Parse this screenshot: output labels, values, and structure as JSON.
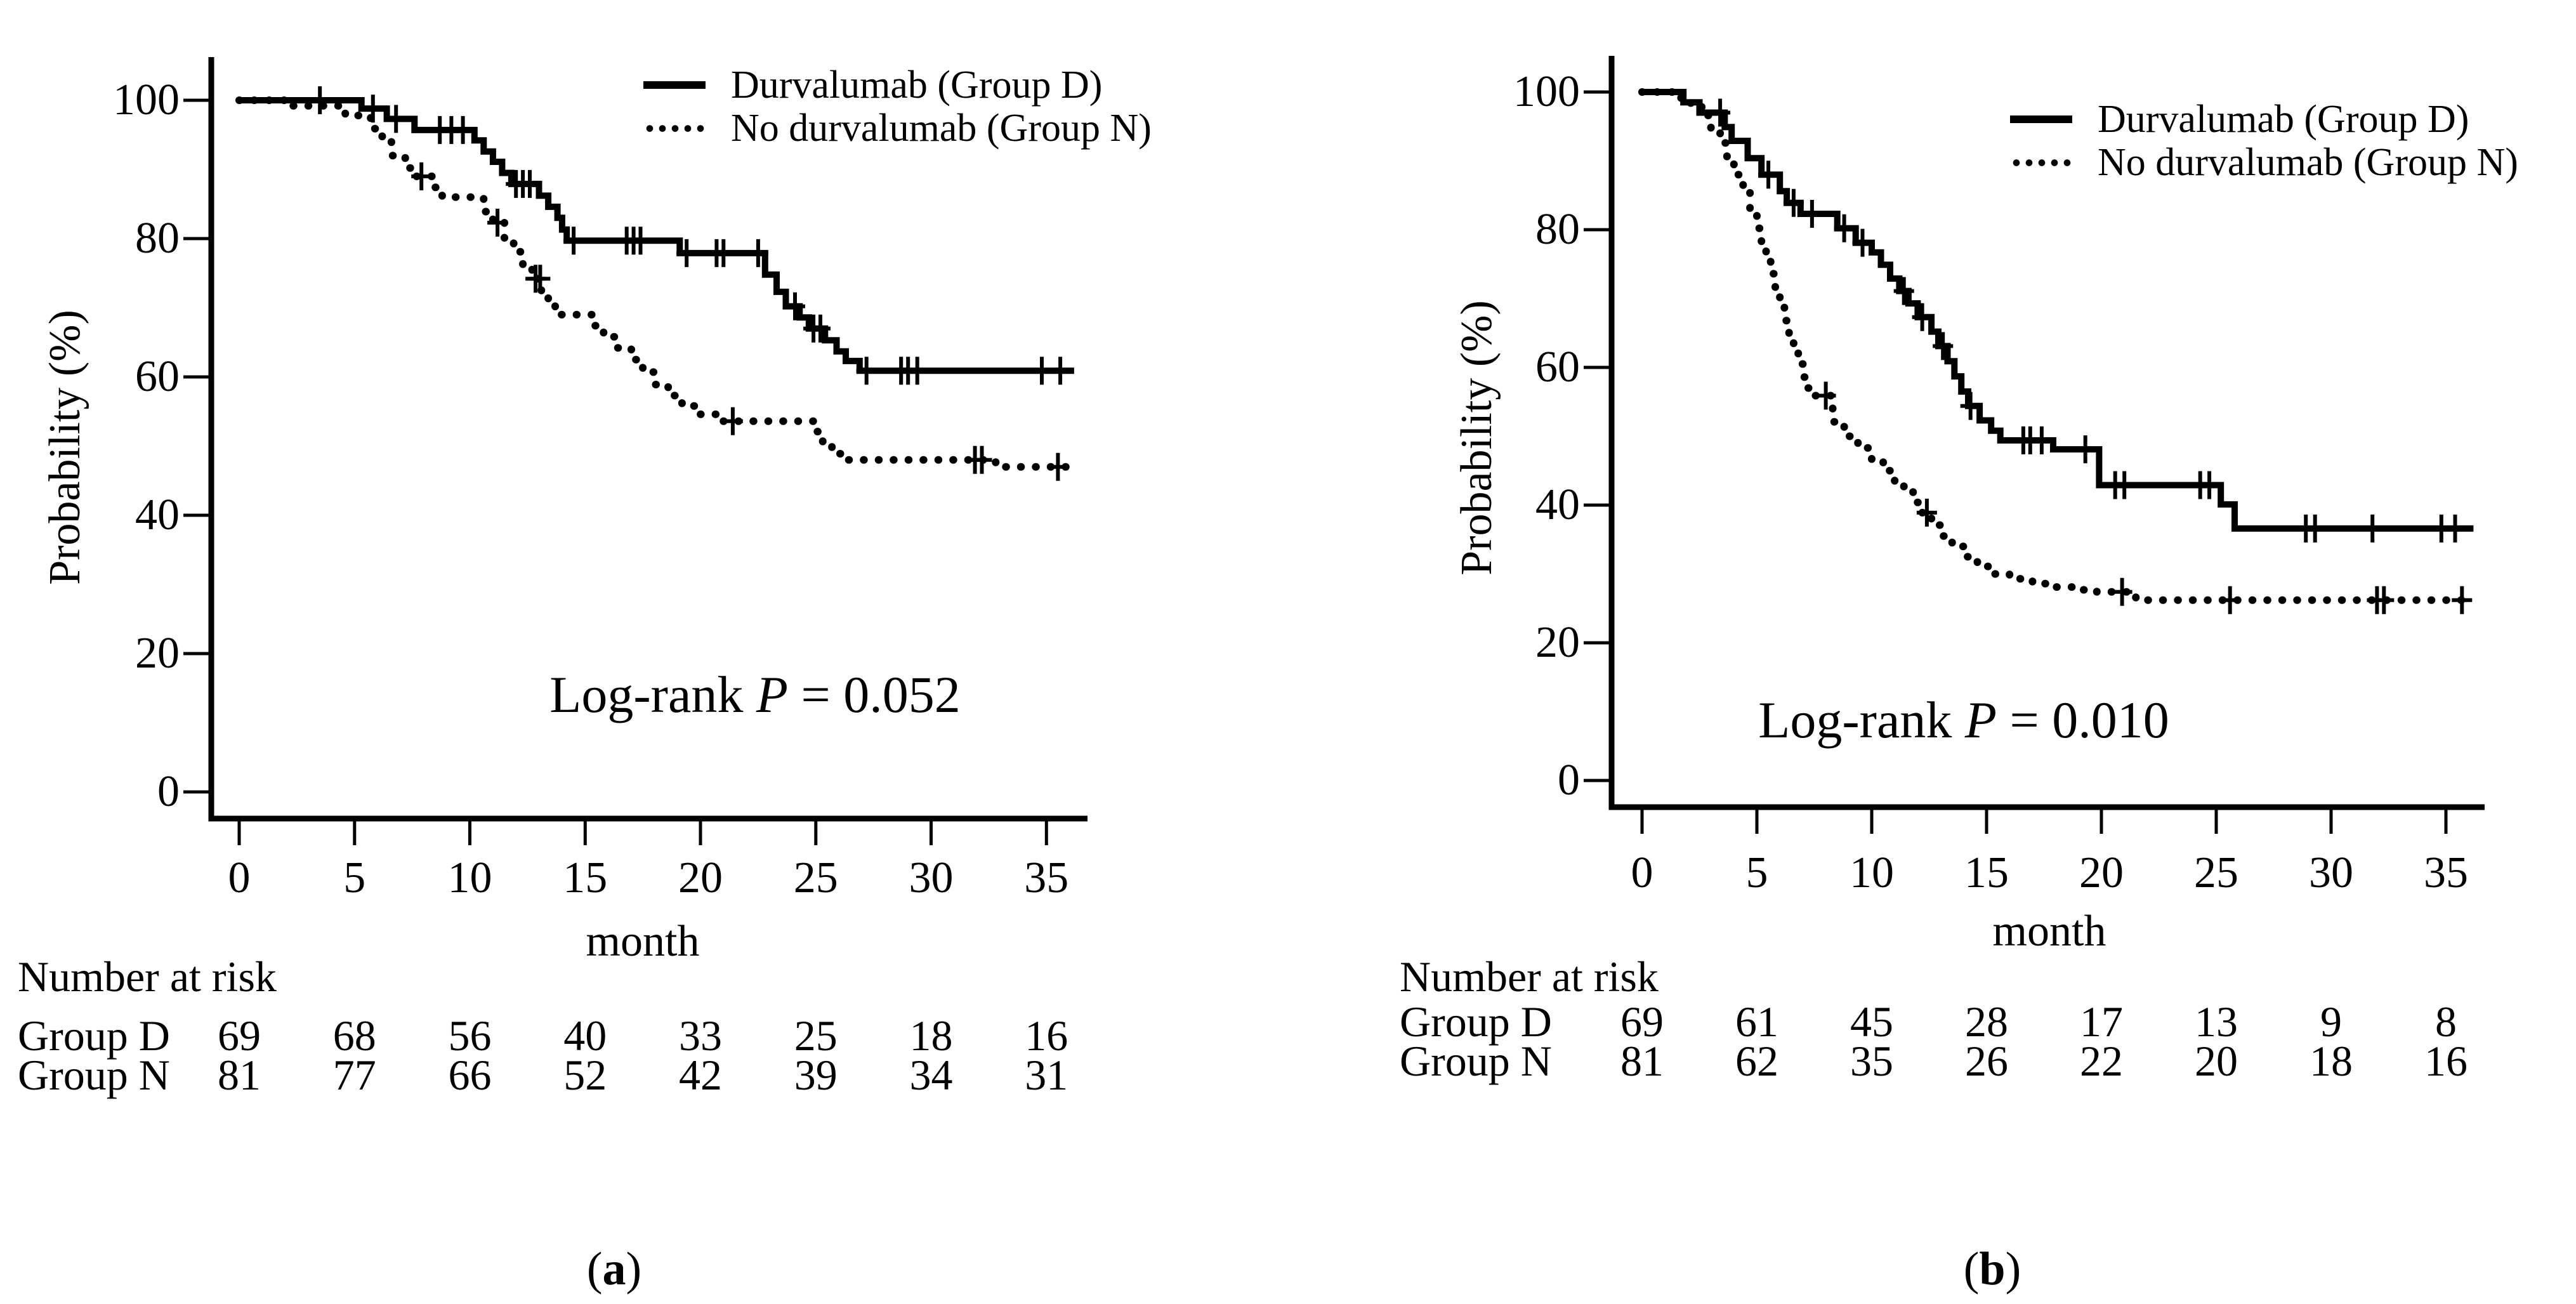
{
  "figure": {
    "background": "#ffffff",
    "ink_color": "#000000"
  },
  "chart_data": [
    {
      "id": "a",
      "type": "line",
      "subtype": "kaplan_meier_step",
      "xlabel": "month",
      "ylabel": "Probability (%)",
      "xlim": [
        0,
        36.5
      ],
      "ylim": [
        0,
        100
      ],
      "xticks": [
        0,
        5,
        10,
        15,
        20,
        25,
        30,
        35
      ],
      "yticks": [
        0,
        20,
        40,
        60,
        80,
        100
      ],
      "grid": false,
      "legend_position": "top-right-inside",
      "annotation": {
        "prefix": "Log-rank",
        "stat": "P",
        "value": "= 0.052"
      },
      "caption": {
        "open": "(",
        "letter": "a",
        "close": ")"
      },
      "series": [
        {
          "name": "Durvalumab (Group D)",
          "group": "Group D",
          "style": "solid",
          "steps_month_percent": [
            [
              0,
              100
            ],
            [
              5.3,
              98.8
            ],
            [
              6.4,
              97.3
            ],
            [
              7.6,
              95.7
            ],
            [
              10.2,
              94.2
            ],
            [
              10.6,
              92.6
            ],
            [
              11.0,
              91.1
            ],
            [
              11.4,
              89.5
            ],
            [
              11.8,
              87.9
            ],
            [
              13.0,
              86.2
            ],
            [
              13.4,
              84.6
            ],
            [
              13.8,
              83.0
            ],
            [
              14.0,
              81.3
            ],
            [
              14.2,
              79.7
            ],
            [
              19.1,
              77.9
            ],
            [
              22.8,
              74.8
            ],
            [
              23.3,
              72.3
            ],
            [
              23.7,
              70.2
            ],
            [
              24.3,
              68.6
            ],
            [
              24.7,
              67.0
            ],
            [
              25.4,
              65.3
            ],
            [
              25.9,
              63.7
            ],
            [
              26.3,
              62.3
            ],
            [
              26.9,
              60.9
            ],
            [
              36.2,
              60.9
            ]
          ],
          "censor_marks_month_percent": [
            [
              3.5,
              100
            ],
            [
              5.8,
              98.8
            ],
            [
              6.8,
              97.3
            ],
            [
              8.7,
              95.7
            ],
            [
              9.2,
              95.7
            ],
            [
              9.7,
              95.7
            ],
            [
              12.0,
              87.9
            ],
            [
              12.3,
              87.9
            ],
            [
              12.6,
              87.9
            ],
            [
              14.5,
              79.7
            ],
            [
              16.8,
              79.7
            ],
            [
              17.1,
              79.7
            ],
            [
              17.4,
              79.7
            ],
            [
              19.4,
              77.9
            ],
            [
              20.7,
              77.9
            ],
            [
              21.0,
              77.9
            ],
            [
              22.5,
              77.9
            ],
            [
              24.1,
              70.2
            ],
            [
              24.9,
              67.0
            ],
            [
              25.2,
              67.0
            ],
            [
              27.2,
              60.9
            ],
            [
              28.7,
              60.9
            ],
            [
              29.0,
              60.9
            ],
            [
              29.4,
              60.9
            ],
            [
              34.8,
              60.9
            ],
            [
              35.6,
              60.9
            ]
          ]
        },
        {
          "name": "No durvalumab (Group N)",
          "group": "Group N",
          "style": "dotted",
          "steps_month_percent": [
            [
              0,
              100
            ],
            [
              2.2,
              99.2
            ],
            [
              4.6,
              97.8
            ],
            [
              5.7,
              95.9
            ],
            [
              6.2,
              94.0
            ],
            [
              6.6,
              92.0
            ],
            [
              7.2,
              90.2
            ],
            [
              7.6,
              89.0
            ],
            [
              8.4,
              87.4
            ],
            [
              8.8,
              86.0
            ],
            [
              10.6,
              83.9
            ],
            [
              11.0,
              82.3
            ],
            [
              11.5,
              80.1
            ],
            [
              11.9,
              78.1
            ],
            [
              12.3,
              76.2
            ],
            [
              12.7,
              74.2
            ],
            [
              13.1,
              72.0
            ],
            [
              13.4,
              70.3
            ],
            [
              13.7,
              69.0
            ],
            [
              15.3,
              67.4
            ],
            [
              15.8,
              65.8
            ],
            [
              16.4,
              64.2
            ],
            [
              17.0,
              62.5
            ],
            [
              17.5,
              60.7
            ],
            [
              18.0,
              58.9
            ],
            [
              18.6,
              57.3
            ],
            [
              19.2,
              55.8
            ],
            [
              19.9,
              54.6
            ],
            [
              20.8,
              53.6
            ],
            [
              24.9,
              52.1
            ],
            [
              25.3,
              50.4
            ],
            [
              25.7,
              48.9
            ],
            [
              26.1,
              48.0
            ],
            [
              32.8,
              47.0
            ],
            [
              36.2,
              47.0
            ]
          ],
          "censor_marks_month_percent": [
            [
              7.9,
              89.0
            ],
            [
              11.2,
              82.3
            ],
            [
              12.85,
              74.2
            ],
            [
              13.05,
              74.2
            ],
            [
              21.4,
              53.6
            ],
            [
              31.9,
              48.0
            ],
            [
              32.2,
              48.0
            ],
            [
              35.5,
              47.0
            ]
          ]
        }
      ],
      "risk_table": {
        "title": "Number at risk",
        "time_points": [
          0,
          5,
          10,
          15,
          20,
          25,
          30,
          35
        ],
        "rows": [
          {
            "label": "Group D",
            "counts": [
              69,
              68,
              56,
              40,
              33,
              25,
              18,
              16
            ]
          },
          {
            "label": "Group N",
            "counts": [
              81,
              77,
              66,
              52,
              42,
              39,
              34,
              31
            ]
          }
        ]
      }
    },
    {
      "id": "b",
      "type": "line",
      "subtype": "kaplan_meier_step",
      "xlabel": "month",
      "ylabel": "Probability (%)",
      "xlim": [
        0,
        36.5
      ],
      "ylim": [
        0,
        100
      ],
      "xticks": [
        0,
        5,
        10,
        15,
        20,
        25,
        30,
        35
      ],
      "yticks": [
        0,
        20,
        40,
        60,
        80,
        100
      ],
      "grid": false,
      "legend_position": "top-right-inside",
      "annotation": {
        "prefix": "Log-rank",
        "stat": "P",
        "value": "= 0.010"
      },
      "caption": {
        "open": "(",
        "letter": "b",
        "close": ")"
      },
      "series": [
        {
          "name": "Durvalumab (Group D)",
          "group": "Group D",
          "style": "solid",
          "steps_month_percent": [
            [
              0,
              100
            ],
            [
              1.8,
              98.5
            ],
            [
              2.5,
              97.0
            ],
            [
              3.6,
              94.9
            ],
            [
              3.9,
              92.9
            ],
            [
              4.6,
              90.4
            ],
            [
              5.2,
              88.0
            ],
            [
              6.0,
              85.6
            ],
            [
              6.3,
              83.9
            ],
            [
              6.9,
              82.3
            ],
            [
              8.5,
              80.2
            ],
            [
              9.3,
              78.1
            ],
            [
              10.0,
              76.7
            ],
            [
              10.4,
              74.9
            ],
            [
              10.8,
              72.9
            ],
            [
              11.2,
              71.1
            ],
            [
              11.6,
              69.3
            ],
            [
              12.0,
              67.3
            ],
            [
              12.6,
              65.2
            ],
            [
              12.9,
              63.1
            ],
            [
              13.3,
              60.9
            ],
            [
              13.6,
              58.7
            ],
            [
              13.9,
              56.5
            ],
            [
              14.2,
              54.4
            ],
            [
              14.7,
              52.3
            ],
            [
              15.2,
              50.8
            ],
            [
              15.6,
              49.4
            ],
            [
              17.9,
              48.1
            ],
            [
              19.9,
              42.9
            ],
            [
              25.2,
              40.1
            ],
            [
              25.8,
              36.6
            ],
            [
              36.2,
              36.6
            ]
          ],
          "censor_marks_month_percent": [
            [
              3.4,
              97.0
            ],
            [
              5.5,
              88.0
            ],
            [
              6.6,
              83.9
            ],
            [
              7.4,
              82.3
            ],
            [
              8.8,
              80.2
            ],
            [
              9.6,
              78.1
            ],
            [
              11.4,
              71.1
            ],
            [
              12.2,
              67.3
            ],
            [
              13.1,
              63.1
            ],
            [
              14.3,
              54.4
            ],
            [
              16.6,
              49.4
            ],
            [
              16.9,
              49.4
            ],
            [
              17.4,
              49.4
            ],
            [
              19.3,
              48.1
            ],
            [
              20.6,
              42.9
            ],
            [
              21.0,
              42.9
            ],
            [
              24.3,
              42.9
            ],
            [
              24.7,
              42.9
            ],
            [
              28.9,
              36.6
            ],
            [
              29.3,
              36.6
            ],
            [
              31.8,
              36.6
            ],
            [
              34.8,
              36.6
            ],
            [
              35.4,
              36.6
            ]
          ]
        },
        {
          "name": "No durvalumab (Group N)",
          "group": "Group N",
          "style": "dotted",
          "steps_month_percent": [
            [
              0,
              100
            ],
            [
              1.7,
              99.0
            ],
            [
              2.0,
              98.4
            ],
            [
              2.6,
              96.6
            ],
            [
              3.0,
              94.8
            ],
            [
              3.4,
              92.6
            ],
            [
              3.7,
              90.3
            ],
            [
              4.0,
              88.0
            ],
            [
              4.4,
              85.4
            ],
            [
              4.7,
              82.6
            ],
            [
              5.0,
              80.2
            ],
            [
              5.2,
              78.0
            ],
            [
              5.4,
              76.0
            ],
            [
              5.6,
              73.6
            ],
            [
              5.8,
              71.3
            ],
            [
              6.0,
              69.1
            ],
            [
              6.2,
              66.8
            ],
            [
              6.4,
              64.6
            ],
            [
              6.6,
              62.6
            ],
            [
              6.8,
              60.5
            ],
            [
              7.0,
              58.6
            ],
            [
              7.2,
              57.0
            ],
            [
              7.5,
              55.9
            ],
            [
              8.3,
              52.1
            ],
            [
              8.8,
              50.0
            ],
            [
              9.4,
              48.3
            ],
            [
              10.0,
              46.5
            ],
            [
              10.5,
              45.0
            ],
            [
              11.0,
              43.4
            ],
            [
              11.4,
              41.9
            ],
            [
              11.8,
              40.4
            ],
            [
              12.2,
              38.9
            ],
            [
              12.6,
              37.1
            ],
            [
              13.0,
              35.5
            ],
            [
              13.5,
              34.0
            ],
            [
              14.0,
              32.5
            ],
            [
              14.6,
              31.1
            ],
            [
              15.2,
              30.0
            ],
            [
              16.0,
              29.3
            ],
            [
              17.0,
              28.6
            ],
            [
              18.0,
              28.1
            ],
            [
              19.0,
              27.7
            ],
            [
              19.8,
              27.4
            ],
            [
              21.5,
              26.2
            ],
            [
              36.2,
              26.2
            ]
          ],
          "censor_marks_month_percent": [
            [
              8.0,
              55.9
            ],
            [
              12.4,
              38.9
            ],
            [
              20.9,
              27.4
            ],
            [
              25.6,
              26.2
            ],
            [
              32.0,
              26.2
            ],
            [
              32.3,
              26.2
            ],
            [
              35.7,
              26.2
            ]
          ]
        }
      ],
      "risk_table": {
        "title": "Number at risk",
        "time_points": [
          0,
          5,
          10,
          15,
          20,
          25,
          30,
          35
        ],
        "rows": [
          {
            "label": "Group D",
            "counts": [
              69,
              61,
              45,
              28,
              17,
              13,
              9,
              8
            ]
          },
          {
            "label": "Group N",
            "counts": [
              81,
              62,
              35,
              26,
              22,
              20,
              18,
              16
            ]
          }
        ]
      }
    }
  ]
}
